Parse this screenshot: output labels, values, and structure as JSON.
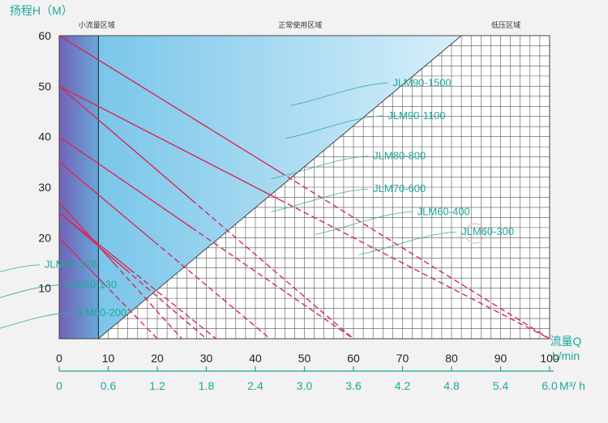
{
  "chart_data": {
    "type": "line",
    "ylabel": "扬程H（M）",
    "xlabel_top": "流量Q",
    "xunit_top": "L/min",
    "xunit_bottom": "M³/ h",
    "xlim": [
      0,
      100
    ],
    "ylim": [
      0,
      60
    ],
    "x_ticks": [
      "0",
      "10",
      "20",
      "30",
      "40",
      "50",
      "60",
      "70",
      "80",
      "90",
      "100"
    ],
    "x2_ticks": [
      "0",
      "0.6",
      "1.2",
      "1.8",
      "2.4",
      "3.0",
      "3.6",
      "4.2",
      "4.8",
      "5.4",
      "6.0"
    ],
    "y_ticks": [
      "10",
      "20",
      "30",
      "40",
      "50",
      "60"
    ],
    "grid": true,
    "zones": [
      {
        "name": "小流量区域",
        "x_end": 8
      },
      {
        "name": "正常使用区域"
      },
      {
        "name": "低压区域"
      }
    ],
    "normal_zone_boundary": {
      "x0": 8,
      "x1": 82,
      "y_at_x0": 0,
      "y_at_x1": 60
    },
    "series": [
      {
        "name": "JLM90-1500",
        "x": [
          0,
          100
        ],
        "y": [
          60,
          0
        ],
        "label_pos": [
          68,
          50
        ]
      },
      {
        "name": "JLM90-1100",
        "x": [
          0,
          100
        ],
        "y": [
          50,
          0
        ],
        "label_pos": [
          67,
          43.5
        ]
      },
      {
        "name": "JLM80-800",
        "x": [
          0,
          60
        ],
        "y": [
          50,
          0
        ],
        "label_pos": [
          64,
          35.5
        ]
      },
      {
        "name": "JLM70-600",
        "x": [
          0,
          60
        ],
        "y": [
          40,
          0
        ],
        "label_pos": [
          64,
          29
        ]
      },
      {
        "name": "JLM60-400",
        "x": [
          0,
          43
        ],
        "y": [
          35,
          0
        ],
        "label_pos": [
          73,
          24.5
        ]
      },
      {
        "name": "JLM60-300",
        "x": [
          0,
          30
        ],
        "y": [
          25,
          0
        ],
        "label_pos": [
          82,
          20.5
        ]
      },
      {
        "name": "JLM60-128",
        "x": [
          0,
          20
        ],
        "y": [
          20,
          0
        ],
        "label_pos": [
          -3,
          14
        ]
      },
      {
        "name": "JLM60-130",
        "x": [
          0,
          25
        ],
        "y": [
          27,
          0
        ],
        "label_pos": [
          1,
          10
        ]
      },
      {
        "name": "JLM60-200",
        "x": [
          0,
          32
        ],
        "y": [
          25,
          0
        ],
        "label_pos": [
          3,
          4.5
        ]
      }
    ]
  }
}
